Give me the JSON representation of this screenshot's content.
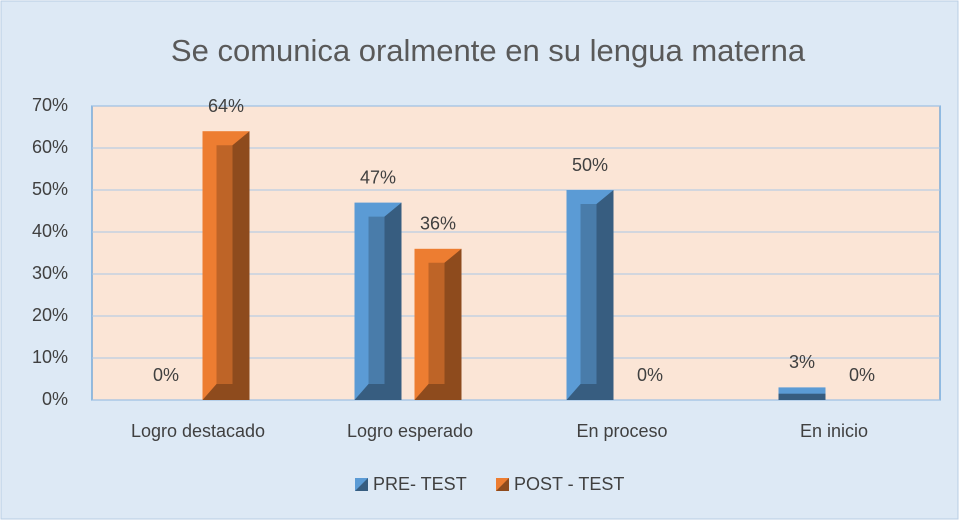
{
  "chart_data": {
    "type": "bar",
    "title": "Se comunica oralmente en su lengua materna",
    "categories": [
      "Logro destacado",
      "Logro esperado",
      "En proceso",
      "En inicio"
    ],
    "series": [
      {
        "name": "PRE- TEST",
        "color": "#5b9bd5",
        "values": [
          0,
          47,
          50,
          3
        ],
        "value_labels": [
          "0%",
          "47%",
          "50%",
          "3%"
        ]
      },
      {
        "name": "POST - TEST",
        "color": "#ed7d31",
        "values": [
          64,
          36,
          0,
          0
        ],
        "value_labels": [
          "64%",
          "36%",
          "0%",
          "0%"
        ]
      }
    ],
    "ylim": [
      0,
      70
    ],
    "yticks": [
      {
        "value": 0,
        "label": "0%"
      },
      {
        "value": 10,
        "label": "10%"
      },
      {
        "value": 20,
        "label": "20%"
      },
      {
        "value": 30,
        "label": "30%"
      },
      {
        "value": 40,
        "label": "40%"
      },
      {
        "value": 50,
        "label": "50%"
      },
      {
        "value": 60,
        "label": "60%"
      },
      {
        "value": 70,
        "label": "70%"
      }
    ],
    "grid": true,
    "legend": "bottom"
  }
}
